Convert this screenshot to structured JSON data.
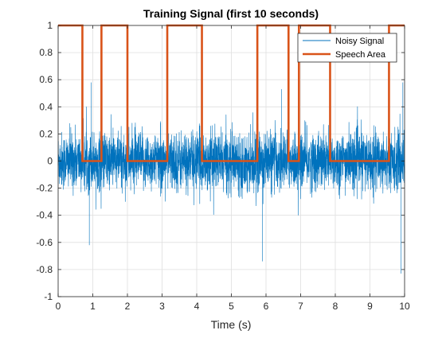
{
  "chart_data": {
    "type": "line",
    "title": "Training Signal (first 10 seconds)",
    "xlabel": "Time (s)",
    "ylabel": "",
    "xlim": [
      0,
      10
    ],
    "ylim": [
      -1,
      1
    ],
    "xticks": [
      0,
      1,
      2,
      3,
      4,
      5,
      6,
      7,
      8,
      9,
      10
    ],
    "yticks": [
      -1,
      -0.8,
      -0.6,
      -0.4,
      -0.2,
      0,
      0.2,
      0.4,
      0.6,
      0.8,
      1
    ],
    "grid": true,
    "legend_position": "top-right",
    "colors": {
      "noisy": "#0072BD",
      "speech": "#D95319"
    },
    "series": [
      {
        "name": "Noisy Signal",
        "kind": "noise",
        "envelope_abs_peak_approx": 0.6,
        "typical_band": [
          -0.25,
          0.25
        ],
        "notable_extremes": [
          {
            "x": 0.9,
            "y": -0.62
          },
          {
            "x": 0.95,
            "y": 0.58
          },
          {
            "x": 5.9,
            "y": -0.74
          },
          {
            "x": 6.45,
            "y": 0.53
          },
          {
            "x": 9.9,
            "y": -0.83
          },
          {
            "x": 9.95,
            "y": 0.58
          }
        ]
      },
      {
        "name": "Speech Area",
        "kind": "step",
        "x": [
          0.0,
          0.7,
          0.7,
          1.25,
          1.25,
          2.0,
          2.0,
          3.15,
          3.15,
          4.15,
          4.15,
          5.75,
          5.75,
          6.65,
          6.65,
          6.95,
          6.95,
          7.85,
          7.85,
          9.55,
          9.55,
          10.0
        ],
        "y": [
          1,
          1,
          0,
          0,
          1,
          1,
          0,
          0,
          1,
          1,
          0,
          0,
          1,
          1,
          0,
          0,
          1,
          1,
          0,
          0,
          1,
          1
        ]
      }
    ]
  }
}
